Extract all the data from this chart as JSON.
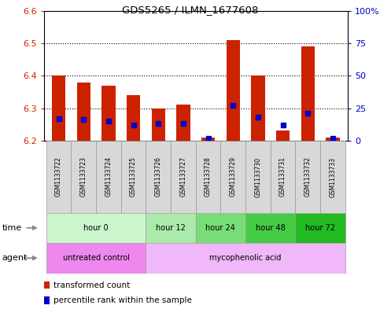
{
  "title": "GDS5265 / ILMN_1677608",
  "samples": [
    "GSM1133722",
    "GSM1133723",
    "GSM1133724",
    "GSM1133725",
    "GSM1133726",
    "GSM1133727",
    "GSM1133728",
    "GSM1133729",
    "GSM1133730",
    "GSM1133731",
    "GSM1133732",
    "GSM1133733"
  ],
  "transformed_count": [
    6.4,
    6.38,
    6.37,
    6.34,
    6.3,
    6.31,
    6.21,
    6.51,
    6.4,
    6.23,
    6.49,
    6.21
  ],
  "percentile_rank": [
    17,
    16,
    15,
    12,
    13,
    13,
    2,
    27,
    18,
    12,
    21,
    2
  ],
  "ylim": [
    6.2,
    6.6
  ],
  "y2lim": [
    0,
    100
  ],
  "y_ticks_left": [
    6.2,
    6.3,
    6.4,
    6.5,
    6.6
  ],
  "y_ticks_right": [
    0,
    25,
    50,
    75,
    100
  ],
  "bar_bottom": 6.2,
  "bar_color": "#cc2200",
  "blue_color": "#0000cc",
  "time_groups": [
    {
      "label": "hour 0",
      "start": 0,
      "end": 3,
      "color": "#ccf5cc"
    },
    {
      "label": "hour 12",
      "start": 4,
      "end": 5,
      "color": "#aaeaaa"
    },
    {
      "label": "hour 24",
      "start": 6,
      "end": 7,
      "color": "#77dd77"
    },
    {
      "label": "hour 48",
      "start": 8,
      "end": 9,
      "color": "#44cc44"
    },
    {
      "label": "hour 72",
      "start": 10,
      "end": 11,
      "color": "#22bb22"
    }
  ],
  "agent_groups": [
    {
      "label": "untreated control",
      "start": 0,
      "end": 3,
      "color": "#ee88ee"
    },
    {
      "label": "mycophenolic acid",
      "start": 4,
      "end": 11,
      "color": "#f0b8f8"
    }
  ],
  "legend_tc": "transformed count",
  "legend_pr": "percentile rank within the sample",
  "axis_color_left": "#cc2200",
  "axis_color_right": "#0000cc"
}
